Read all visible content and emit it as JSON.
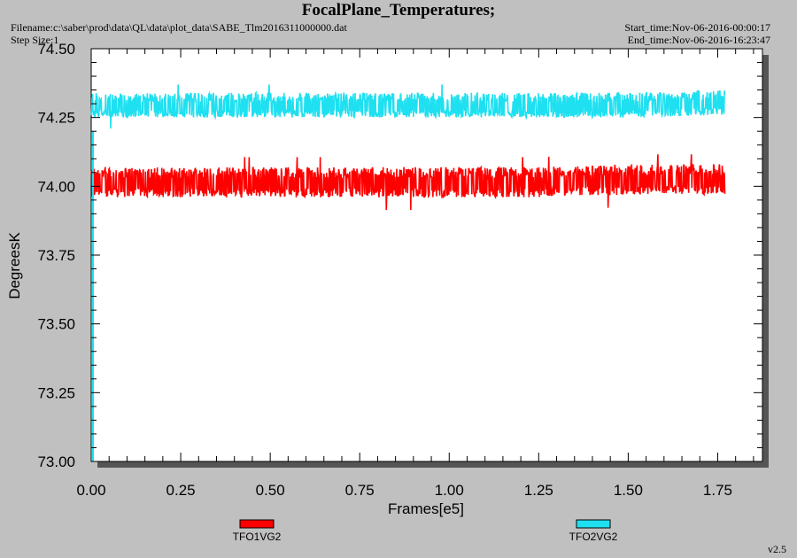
{
  "header": {
    "title": "FocalPlane_Temperatures;",
    "filename": "Filename:c:\\saber\\prod\\data\\QL\\data\\plot_data\\SABE_Tlm2016311000000.dat",
    "step_size": "Step Size:1",
    "start_time": "Start_time:Nov-06-2016-00:00:17",
    "end_time": "End_time:Nov-06-2016-16:23:47"
  },
  "footer": {
    "version": "v2.5"
  },
  "chart_data": {
    "type": "line",
    "title": "FocalPlane_Temperatures;",
    "xlabel": "Frames[e5]",
    "ylabel": "DegreesK",
    "xlim": [
      0.0,
      1.875
    ],
    "ylim": [
      73.0,
      74.5
    ],
    "x_ticks": [
      "0.00",
      "0.25",
      "0.50",
      "0.75",
      "1.00",
      "1.25",
      "1.50",
      "1.75"
    ],
    "y_ticks": [
      "73.00",
      "73.25",
      "73.50",
      "73.75",
      "74.00",
      "74.25",
      "74.50"
    ],
    "grid": false,
    "legend_position": "bottom",
    "series": [
      {
        "name": "TFO1VG2",
        "color": "#ff0000",
        "x": [
          0.0,
          0.25,
          0.5,
          0.75,
          1.0,
          1.25,
          1.5,
          1.77
        ],
        "values": [
          74.01,
          74.01,
          74.01,
          74.01,
          74.01,
          74.01,
          74.02,
          74.02
        ],
        "noise_band": [
          73.96,
          74.07
        ]
      },
      {
        "name": "TFO2VG2",
        "color": "#1ee0f0",
        "x": [
          0.0,
          0.25,
          0.5,
          0.75,
          1.0,
          1.25,
          1.5,
          1.77
        ],
        "values": [
          74.29,
          74.29,
          74.29,
          74.29,
          74.29,
          74.29,
          74.29,
          74.3
        ],
        "noise_band": [
          74.25,
          74.34
        ]
      }
    ]
  }
}
